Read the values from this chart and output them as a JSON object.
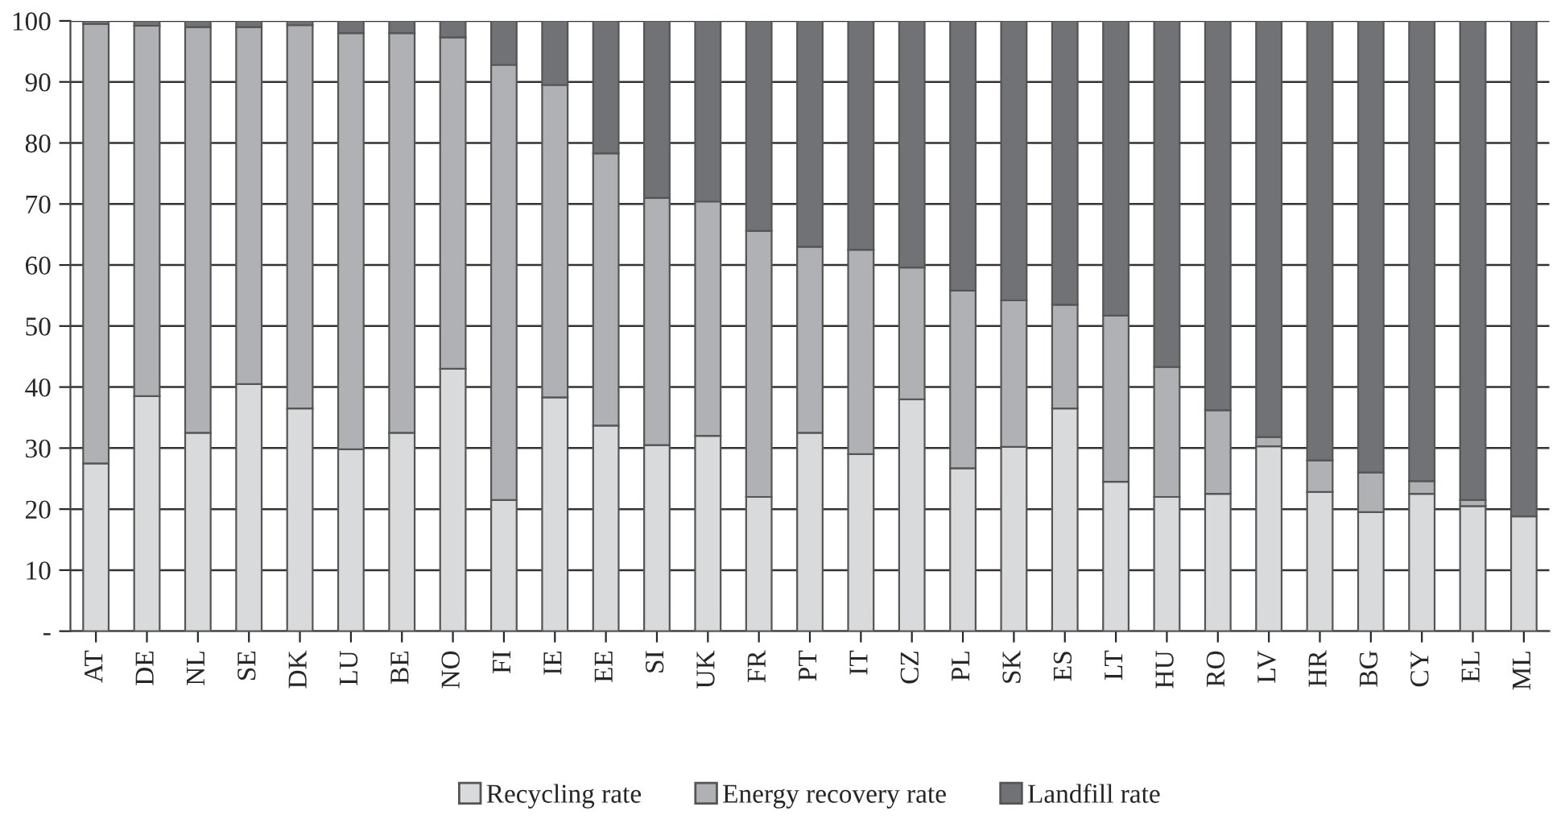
{
  "chart_data": {
    "type": "bar",
    "stacked": true,
    "categories": [
      "AT",
      "DE",
      "NL",
      "SE",
      "DK",
      "LU",
      "BE",
      "NO",
      "FI",
      "IE",
      "EE",
      "SI",
      "UK",
      "FR",
      "PT",
      "IT",
      "CZ",
      "PL",
      "SK",
      "ES",
      "LT",
      "HU",
      "RO",
      "LV",
      "HR",
      "BG",
      "CY",
      "EL",
      "ML"
    ],
    "series": [
      {
        "name": "Recycling rate",
        "color": "#d9dadc",
        "values": [
          27.5,
          38.5,
          32.5,
          40.5,
          36.5,
          29.8,
          32.5,
          43.0,
          21.5,
          38.3,
          33.7,
          30.5,
          32.0,
          22.0,
          32.5,
          29.0,
          38.0,
          26.7,
          30.2,
          36.5,
          24.5,
          22.0,
          22.5,
          30.3,
          22.8,
          19.5,
          22.5,
          20.5,
          18.8
        ]
      },
      {
        "name": "Energy recovery rate",
        "color": "#b0b1b4",
        "values": [
          72.0,
          60.7,
          66.5,
          58.5,
          62.8,
          68.2,
          65.5,
          54.3,
          71.3,
          51.2,
          44.6,
          40.5,
          38.4,
          43.6,
          30.5,
          33.5,
          21.6,
          29.1,
          24.0,
          17.0,
          27.2,
          21.3,
          13.7,
          1.5,
          5.2,
          6.5,
          2.1,
          1.0,
          null
        ]
      },
      {
        "name": "Landfill rate",
        "color": "#717276",
        "values": [
          0.5,
          0.8,
          1.0,
          1.0,
          0.7,
          2.0,
          2.0,
          2.7,
          7.2,
          10.5,
          21.7,
          29.0,
          29.6,
          34.4,
          37.0,
          37.5,
          40.4,
          44.2,
          45.8,
          46.5,
          48.3,
          56.7,
          63.8,
          68.2,
          72.0,
          74.0,
          75.4,
          78.5,
          81.2
        ]
      }
    ],
    "ylim": [
      0,
      100
    ],
    "yticks": [
      {
        "value": 0,
        "label": "-"
      },
      10,
      20,
      30,
      40,
      50,
      60,
      70,
      80,
      90,
      100
    ],
    "grid": "y",
    "legend": "bottom"
  }
}
